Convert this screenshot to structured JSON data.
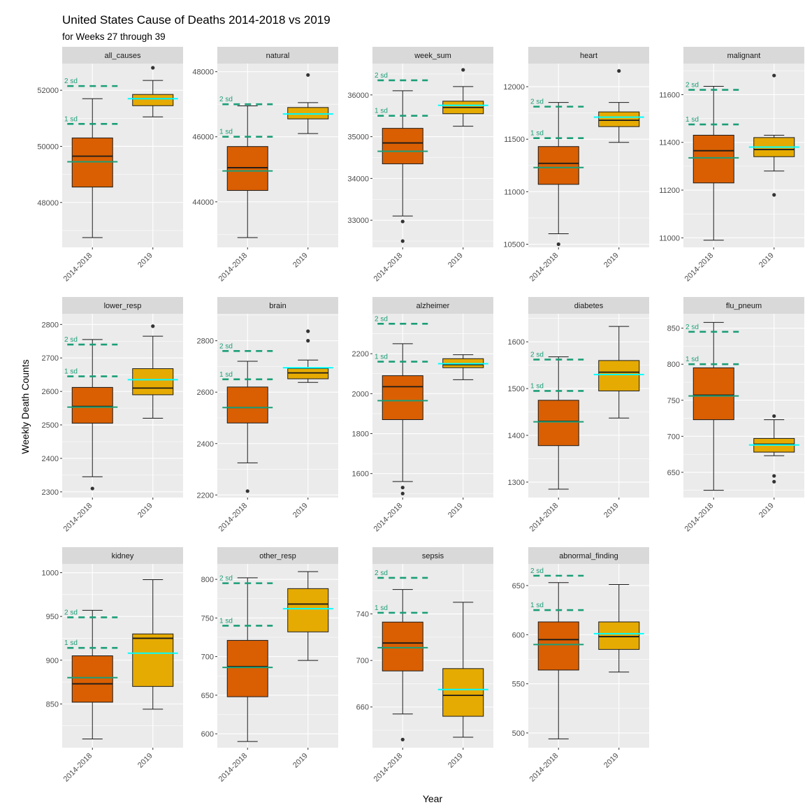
{
  "chart_data": {
    "type": "box",
    "title": "United States Cause of Deaths  2014-2018 vs 2019",
    "subtitle": "for Weeks 27 through 39",
    "xlabel": "Year",
    "ylabel": "Weekly Death Counts",
    "categories": [
      "2014-2018",
      "2019"
    ],
    "colors": {
      "box_2014_2018": "#D95F02",
      "box_2019": "#E6AB02",
      "mean_2014_2018": "#1B9E77",
      "mean_2019": "#00FFFF",
      "sd_lines": "#1B9E77",
      "panel_bg": "#EBEBEB",
      "strip_bg": "#D9D9D9",
      "grid": "#FFFFFF"
    },
    "sd_labels": [
      "1 sd",
      "2 sd"
    ],
    "facets": [
      {
        "name": "all_causes",
        "ylim": [
          46400,
          52950
        ],
        "yticks": [
          48000,
          50000,
          52000
        ],
        "boxes": [
          {
            "whisker_low": 46750,
            "q1": 48550,
            "median": 49650,
            "q3": 50300,
            "whisker_high": 51700,
            "outliers": [],
            "mean": 49450
          },
          {
            "whisker_low": 51050,
            "q1": 51450,
            "median": 51700,
            "q3": 51850,
            "whisker_high": 52350,
            "outliers": [
              52800
            ],
            "mean": 51700
          }
        ],
        "sd1": 50800,
        "sd2": 52150
      },
      {
        "name": "natural",
        "ylim": [
          42600,
          48250
        ],
        "yticks": [
          44000,
          46000,
          48000
        ],
        "boxes": [
          {
            "whisker_low": 42900,
            "q1": 44350,
            "median": 45050,
            "q3": 45700,
            "whisker_high": 46950,
            "outliers": [],
            "mean": 44950
          },
          {
            "whisker_low": 46100,
            "q1": 46550,
            "median": 46700,
            "q3": 46900,
            "whisker_high": 47050,
            "outliers": [
              47900
            ],
            "mean": 46700
          }
        ],
        "sd1": 46000,
        "sd2": 47000
      },
      {
        "name": "week_sum",
        "ylim": [
          32350,
          36750
        ],
        "yticks": [
          33000,
          34000,
          35000,
          36000
        ],
        "boxes": [
          {
            "whisker_low": 33100,
            "q1": 34350,
            "median": 34850,
            "q3": 35200,
            "whisker_high": 36100,
            "outliers": [
              32970,
              32500
            ],
            "mean": 34650
          },
          {
            "whisker_low": 35250,
            "q1": 35550,
            "median": 35700,
            "q3": 35850,
            "whisker_high": 36200,
            "outliers": [
              36600
            ],
            "mean": 35750
          }
        ],
        "sd1": 35500,
        "sd2": 36350
      },
      {
        "name": "heart",
        "ylim": [
          10470,
          12220
        ],
        "yticks": [
          10500,
          11000,
          11500,
          12000
        ],
        "boxes": [
          {
            "whisker_low": 10600,
            "q1": 11070,
            "median": 11270,
            "q3": 11430,
            "whisker_high": 11850,
            "outliers": [
              10500
            ],
            "mean": 11230
          },
          {
            "whisker_low": 11470,
            "q1": 11620,
            "median": 11680,
            "q3": 11760,
            "whisker_high": 11850,
            "outliers": [
              12150
            ],
            "mean": 11710
          }
        ],
        "sd1": 11510,
        "sd2": 11810
      },
      {
        "name": "malignant",
        "ylim": [
          10960,
          11730
        ],
        "yticks": [
          11000,
          11200,
          11400,
          11600
        ],
        "boxes": [
          {
            "whisker_low": 10990,
            "q1": 11230,
            "median": 11365,
            "q3": 11430,
            "whisker_high": 11635,
            "outliers": [],
            "mean": 11335
          },
          {
            "whisker_low": 11280,
            "q1": 11340,
            "median": 11370,
            "q3": 11420,
            "whisker_high": 11430,
            "outliers": [
              11180,
              11680
            ],
            "mean": 11380
          }
        ],
        "sd1": 11475,
        "sd2": 11620
      },
      {
        "name": "lower_resp",
        "ylim": [
          2283,
          2832
        ],
        "yticks": [
          2300,
          2400,
          2500,
          2600,
          2700,
          2800
        ],
        "boxes": [
          {
            "whisker_low": 2345,
            "q1": 2505,
            "median": 2555,
            "q3": 2612,
            "whisker_high": 2755,
            "outliers": [
              2310
            ],
            "mean": 2553
          },
          {
            "whisker_low": 2520,
            "q1": 2590,
            "median": 2610,
            "q3": 2668,
            "whisker_high": 2765,
            "outliers": [
              2795
            ],
            "mean": 2635
          }
        ],
        "sd1": 2645,
        "sd2": 2740
      },
      {
        "name": "brain",
        "ylim": [
          2190,
          2905
        ],
        "yticks": [
          2200,
          2400,
          2600,
          2800
        ],
        "boxes": [
          {
            "whisker_low": 2325,
            "q1": 2480,
            "median": 2540,
            "q3": 2620,
            "whisker_high": 2720,
            "outliers": [
              2215
            ],
            "mean": 2540
          },
          {
            "whisker_low": 2638,
            "q1": 2652,
            "median": 2675,
            "q3": 2692,
            "whisker_high": 2725,
            "outliers": [
              2800,
              2837
            ],
            "mean": 2695
          }
        ],
        "sd1": 2650,
        "sd2": 2760
      },
      {
        "name": "alzheimer",
        "ylim": [
          1480,
          2400
        ],
        "yticks": [
          1600,
          1800,
          2000,
          2200
        ],
        "boxes": [
          {
            "whisker_low": 1560,
            "q1": 1870,
            "median": 2035,
            "q3": 2090,
            "whisker_high": 2250,
            "outliers": [
              1530,
              1500
            ],
            "mean": 1965
          },
          {
            "whisker_low": 2070,
            "q1": 2130,
            "median": 2145,
            "q3": 2175,
            "whisker_high": 2195,
            "outliers": [],
            "mean": 2150
          }
        ],
        "sd1": 2160,
        "sd2": 2350
      },
      {
        "name": "diabetes",
        "ylim": [
          1267,
          1660
        ],
        "yticks": [
          1300,
          1400,
          1500,
          1600
        ],
        "boxes": [
          {
            "whisker_low": 1285,
            "q1": 1378,
            "median": 1430,
            "q3": 1475,
            "whisker_high": 1568,
            "outliers": [],
            "mean": 1429
          },
          {
            "whisker_low": 1437,
            "q1": 1495,
            "median": 1535,
            "q3": 1560,
            "whisker_high": 1633,
            "outliers": [],
            "mean": 1530
          }
        ],
        "sd1": 1495,
        "sd2": 1562
      },
      {
        "name": "flu_pneum",
        "ylim": [
          615,
          870
        ],
        "yticks": [
          650,
          700,
          750,
          800,
          850
        ],
        "boxes": [
          {
            "whisker_low": 625,
            "q1": 723,
            "median": 757,
            "q3": 795,
            "whisker_high": 858,
            "outliers": [],
            "mean": 756
          },
          {
            "whisker_low": 673,
            "q1": 678,
            "median": 689,
            "q3": 697,
            "whisker_high": 723,
            "outliers": [
              728,
              645,
              637
            ],
            "mean": 688
          }
        ],
        "sd1": 800,
        "sd2": 845
      },
      {
        "name": "kidney",
        "ylim": [
          800,
          1010
        ],
        "yticks": [
          850,
          900,
          950,
          1000
        ],
        "boxes": [
          {
            "whisker_low": 810,
            "q1": 852,
            "median": 873,
            "q3": 905,
            "whisker_high": 957,
            "outliers": [],
            "mean": 880
          },
          {
            "whisker_low": 844,
            "q1": 870,
            "median": 925,
            "q3": 930,
            "whisker_high": 992,
            "outliers": [],
            "mean": 908
          }
        ],
        "sd1": 914,
        "sd2": 949
      },
      {
        "name": "other_resp",
        "ylim": [
          582,
          820
        ],
        "yticks": [
          600,
          650,
          700,
          750,
          800
        ],
        "boxes": [
          {
            "whisker_low": 590,
            "q1": 648,
            "median": 687,
            "q3": 721,
            "whisker_high": 802,
            "outliers": [],
            "mean": 686
          },
          {
            "whisker_low": 695,
            "q1": 732,
            "median": 768,
            "q3": 788,
            "whisker_high": 810,
            "outliers": [],
            "mean": 762
          }
        ],
        "sd1": 740,
        "sd2": 795
      },
      {
        "name": "sepsis",
        "ylim": [
          625,
          783
        ],
        "yticks": [
          660,
          700,
          740
        ],
        "boxes": [
          {
            "whisker_low": 654,
            "q1": 691,
            "median": 715,
            "q3": 733,
            "whisker_high": 761,
            "outliers": [
              632
            ],
            "mean": 711
          },
          {
            "whisker_low": 634,
            "q1": 652,
            "median": 670,
            "q3": 693,
            "whisker_high": 750,
            "outliers": [],
            "mean": 675
          }
        ],
        "sd1": 741,
        "sd2": 771
      },
      {
        "name": "abnormal_finding",
        "ylim": [
          485,
          672
        ],
        "yticks": [
          500,
          550,
          600,
          650
        ],
        "boxes": [
          {
            "whisker_low": 494,
            "q1": 564,
            "median": 595,
            "q3": 613,
            "whisker_high": 653,
            "outliers": [],
            "mean": 590
          },
          {
            "whisker_low": 562,
            "q1": 585,
            "median": 598,
            "q3": 613,
            "whisker_high": 651,
            "outliers": [],
            "mean": 601
          }
        ],
        "sd1": 625,
        "sd2": 660
      }
    ]
  }
}
